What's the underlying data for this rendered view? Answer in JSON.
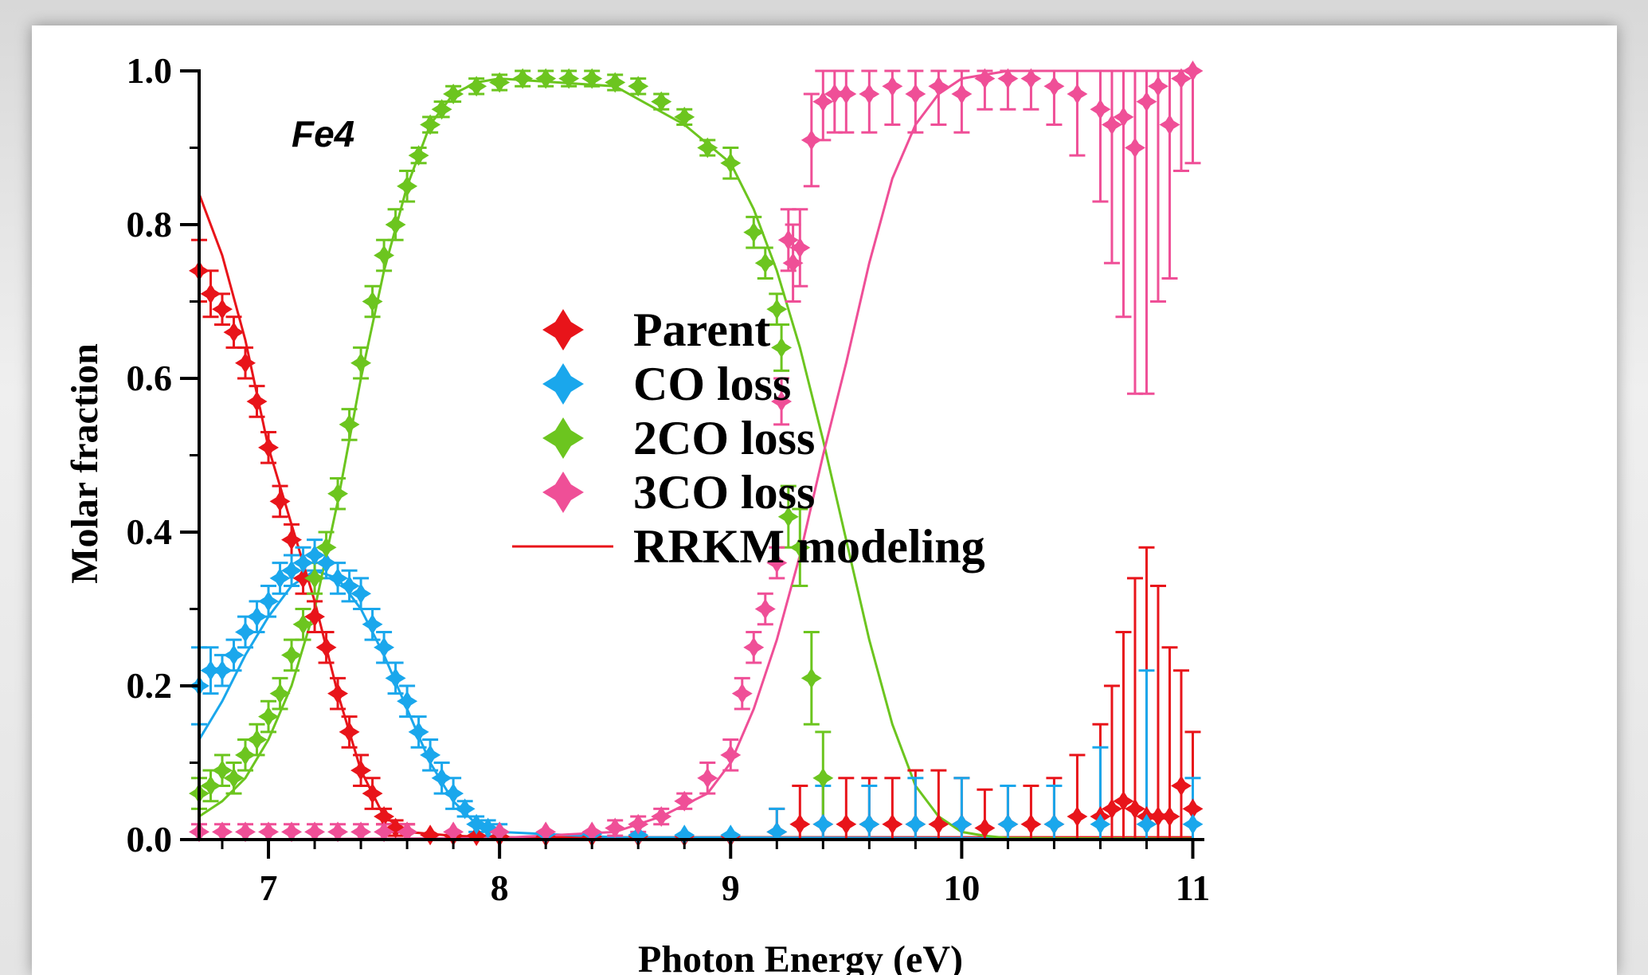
{
  "chart_data": {
    "type": "scatter",
    "title": "",
    "annotation": "Fe4",
    "xlabel": "Photon Energy (eV)",
    "ylabel": "Molar fraction",
    "xlim": [
      6.7,
      11.05
    ],
    "ylim": [
      0.0,
      1.0
    ],
    "x_ticks": [
      "7",
      "8",
      "9",
      "10",
      "11"
    ],
    "y_ticks": [
      "0.0",
      "0.2",
      "0.4",
      "0.6",
      "0.8",
      "1.0"
    ],
    "grid": false,
    "legend_position": "center",
    "colors": {
      "parent": "#e8141a",
      "co_loss": "#1aa7ec",
      "two_co_loss": "#6cc51f",
      "three_co_loss": "#ef4f97"
    },
    "series": [
      {
        "name": "Parent",
        "kind": "points",
        "color": "#e8141a",
        "x": [
          6.7,
          6.75,
          6.8,
          6.85,
          6.9,
          6.95,
          7.0,
          7.05,
          7.1,
          7.15,
          7.2,
          7.25,
          7.3,
          7.35,
          7.4,
          7.45,
          7.5,
          7.55,
          7.6,
          7.7,
          7.8,
          7.9,
          8.0,
          8.2,
          8.4,
          8.6,
          8.8,
          9.0,
          9.2,
          9.3,
          9.4,
          9.5,
          9.6,
          9.7,
          9.8,
          9.9,
          10.0,
          10.1,
          10.2,
          10.3,
          10.4,
          10.5,
          10.6,
          10.65,
          10.7,
          10.75,
          10.8,
          10.85,
          10.9,
          10.95,
          11.0
        ],
        "y": [
          0.74,
          0.71,
          0.69,
          0.66,
          0.62,
          0.57,
          0.51,
          0.44,
          0.39,
          0.34,
          0.29,
          0.25,
          0.19,
          0.14,
          0.09,
          0.06,
          0.03,
          0.015,
          0.01,
          0.006,
          0.005,
          0.005,
          0.004,
          0.004,
          0.004,
          0.004,
          0.004,
          0.004,
          0.01,
          0.02,
          0.02,
          0.02,
          0.02,
          0.02,
          0.02,
          0.02,
          0.02,
          0.015,
          0.02,
          0.02,
          0.02,
          0.03,
          0.03,
          0.04,
          0.05,
          0.04,
          0.03,
          0.03,
          0.03,
          0.07,
          0.04
        ],
        "err": [
          0.04,
          0.03,
          0.02,
          0.02,
          0.02,
          0.02,
          0.02,
          0.02,
          0.02,
          0.02,
          0.02,
          0.02,
          0.02,
          0.02,
          0.02,
          0.02,
          0.01,
          0.01,
          0.01,
          0.005,
          0.005,
          0.005,
          0.005,
          0.005,
          0.005,
          0.005,
          0.005,
          0.005,
          0.03,
          0.05,
          0.06,
          0.06,
          0.06,
          0.06,
          0.07,
          0.07,
          0.06,
          0.05,
          0.05,
          0.05,
          0.06,
          0.08,
          0.12,
          0.16,
          0.22,
          0.3,
          0.35,
          0.3,
          0.22,
          0.15,
          0.1
        ]
      },
      {
        "name": "CO loss",
        "kind": "points",
        "color": "#1aa7ec",
        "x": [
          6.7,
          6.75,
          6.8,
          6.85,
          6.9,
          6.95,
          7.0,
          7.05,
          7.1,
          7.15,
          7.2,
          7.25,
          7.3,
          7.35,
          7.4,
          7.45,
          7.5,
          7.55,
          7.6,
          7.65,
          7.7,
          7.75,
          7.8,
          7.85,
          7.9,
          7.95,
          8.0,
          8.2,
          8.4,
          8.6,
          8.8,
          9.0,
          9.2,
          9.4,
          9.6,
          9.8,
          10.0,
          10.2,
          10.4,
          10.6,
          10.8,
          11.0
        ],
        "y": [
          0.2,
          0.22,
          0.22,
          0.24,
          0.27,
          0.29,
          0.31,
          0.34,
          0.35,
          0.36,
          0.37,
          0.36,
          0.34,
          0.33,
          0.32,
          0.28,
          0.25,
          0.21,
          0.18,
          0.14,
          0.11,
          0.08,
          0.06,
          0.04,
          0.02,
          0.015,
          0.01,
          0.007,
          0.007,
          0.006,
          0.006,
          0.006,
          0.01,
          0.02,
          0.02,
          0.02,
          0.02,
          0.02,
          0.02,
          0.02,
          0.02,
          0.02
        ],
        "err": [
          0.05,
          0.03,
          0.02,
          0.02,
          0.02,
          0.02,
          0.02,
          0.02,
          0.02,
          0.02,
          0.02,
          0.02,
          0.02,
          0.02,
          0.02,
          0.02,
          0.02,
          0.02,
          0.02,
          0.02,
          0.02,
          0.02,
          0.02,
          0.01,
          0.01,
          0.01,
          0.01,
          0.005,
          0.005,
          0.005,
          0.005,
          0.005,
          0.03,
          0.05,
          0.05,
          0.06,
          0.06,
          0.05,
          0.05,
          0.1,
          0.2,
          0.06
        ]
      },
      {
        "name": "2CO loss",
        "kind": "points",
        "color": "#6cc51f",
        "x": [
          6.7,
          6.75,
          6.8,
          6.85,
          6.9,
          6.95,
          7.0,
          7.05,
          7.1,
          7.15,
          7.2,
          7.25,
          7.3,
          7.35,
          7.4,
          7.45,
          7.5,
          7.55,
          7.6,
          7.65,
          7.7,
          7.75,
          7.8,
          7.9,
          8.0,
          8.1,
          8.2,
          8.3,
          8.4,
          8.5,
          8.6,
          8.7,
          8.8,
          8.9,
          9.0,
          9.1,
          9.15,
          9.2,
          9.22,
          9.25,
          9.3,
          9.35,
          9.4
        ],
        "y": [
          0.06,
          0.07,
          0.09,
          0.08,
          0.11,
          0.13,
          0.16,
          0.19,
          0.24,
          0.28,
          0.34,
          0.38,
          0.45,
          0.54,
          0.62,
          0.7,
          0.76,
          0.8,
          0.85,
          0.89,
          0.93,
          0.95,
          0.97,
          0.98,
          0.985,
          0.99,
          0.99,
          0.99,
          0.99,
          0.985,
          0.98,
          0.96,
          0.94,
          0.9,
          0.88,
          0.79,
          0.75,
          0.69,
          0.64,
          0.42,
          0.38,
          0.21,
          0.08
        ],
        "err": [
          0.02,
          0.02,
          0.02,
          0.02,
          0.02,
          0.02,
          0.02,
          0.02,
          0.02,
          0.02,
          0.02,
          0.02,
          0.02,
          0.02,
          0.02,
          0.02,
          0.02,
          0.02,
          0.02,
          0.01,
          0.01,
          0.01,
          0.01,
          0.01,
          0.01,
          0.01,
          0.01,
          0.01,
          0.01,
          0.01,
          0.01,
          0.01,
          0.01,
          0.01,
          0.02,
          0.02,
          0.02,
          0.02,
          0.03,
          0.04,
          0.05,
          0.06,
          0.06
        ]
      },
      {
        "name": "3CO loss",
        "kind": "points",
        "color": "#ef4f97",
        "x": [
          6.7,
          6.8,
          6.9,
          7.0,
          7.1,
          7.2,
          7.3,
          7.4,
          7.5,
          7.6,
          7.8,
          8.0,
          8.2,
          8.4,
          8.5,
          8.6,
          8.7,
          8.8,
          8.9,
          9.0,
          9.05,
          9.1,
          9.15,
          9.2,
          9.22,
          9.25,
          9.27,
          9.3,
          9.35,
          9.4,
          9.45,
          9.5,
          9.6,
          9.7,
          9.8,
          9.9,
          10.0,
          10.1,
          10.2,
          10.3,
          10.4,
          10.5,
          10.6,
          10.65,
          10.7,
          10.75,
          10.8,
          10.85,
          10.9,
          10.95,
          11.0
        ],
        "y": [
          0.01,
          0.01,
          0.01,
          0.01,
          0.01,
          0.01,
          0.01,
          0.01,
          0.01,
          0.01,
          0.01,
          0.01,
          0.01,
          0.01,
          0.015,
          0.02,
          0.03,
          0.05,
          0.08,
          0.11,
          0.19,
          0.25,
          0.3,
          0.36,
          0.57,
          0.78,
          0.75,
          0.77,
          0.91,
          0.96,
          0.97,
          0.97,
          0.97,
          0.98,
          0.97,
          0.98,
          0.97,
          0.99,
          0.99,
          0.99,
          0.98,
          0.97,
          0.95,
          0.93,
          0.94,
          0.9,
          0.96,
          0.98,
          0.93,
          0.99,
          1.0
        ],
        "err": [
          0.01,
          0.01,
          0.01,
          0.01,
          0.01,
          0.01,
          0.01,
          0.01,
          0.01,
          0.01,
          0.005,
          0.005,
          0.005,
          0.005,
          0.01,
          0.01,
          0.01,
          0.01,
          0.02,
          0.02,
          0.02,
          0.02,
          0.02,
          0.02,
          0.03,
          0.04,
          0.05,
          0.05,
          0.06,
          0.05,
          0.05,
          0.05,
          0.05,
          0.05,
          0.05,
          0.05,
          0.05,
          0.04,
          0.04,
          0.04,
          0.05,
          0.08,
          0.12,
          0.18,
          0.26,
          0.32,
          0.38,
          0.28,
          0.2,
          0.12,
          0.12
        ]
      },
      {
        "name": "RRKM modeling",
        "kind": "lines",
        "model_parent": {
          "color": "#e8141a",
          "x": [
            6.7,
            6.8,
            6.9,
            7.0,
            7.1,
            7.2,
            7.3,
            7.4,
            7.5,
            7.6,
            7.8,
            8.0,
            9.0,
            10.0,
            11.0
          ],
          "y": [
            0.84,
            0.76,
            0.65,
            0.51,
            0.41,
            0.31,
            0.19,
            0.09,
            0.03,
            0.01,
            0.005,
            0.003,
            0.003,
            0.003,
            0.003
          ]
        },
        "model_co": {
          "color": "#1aa7ec",
          "x": [
            6.7,
            6.8,
            6.9,
            7.0,
            7.1,
            7.2,
            7.3,
            7.4,
            7.5,
            7.6,
            7.7,
            7.8,
            7.9,
            8.0,
            8.5,
            11.0
          ],
          "y": [
            0.13,
            0.18,
            0.24,
            0.29,
            0.33,
            0.35,
            0.34,
            0.3,
            0.24,
            0.17,
            0.1,
            0.05,
            0.02,
            0.01,
            0.003,
            0.001
          ]
        },
        "model_2co": {
          "color": "#6cc51f",
          "x": [
            6.7,
            6.8,
            6.9,
            7.0,
            7.1,
            7.2,
            7.3,
            7.4,
            7.5,
            7.6,
            7.7,
            7.8,
            7.9,
            8.0,
            8.5,
            8.8,
            9.0,
            9.1,
            9.2,
            9.3,
            9.4,
            9.5,
            9.6,
            9.7,
            9.8,
            9.9,
            10.0,
            10.1,
            10.2,
            11.0
          ],
          "y": [
            0.03,
            0.05,
            0.08,
            0.13,
            0.2,
            0.3,
            0.44,
            0.6,
            0.74,
            0.85,
            0.93,
            0.97,
            0.985,
            0.99,
            0.98,
            0.93,
            0.88,
            0.82,
            0.74,
            0.64,
            0.52,
            0.39,
            0.26,
            0.15,
            0.07,
            0.03,
            0.01,
            0.005,
            0.002,
            0.001
          ]
        },
        "model_3co": {
          "color": "#ef4f97",
          "x": [
            6.7,
            8.0,
            8.5,
            8.7,
            8.9,
            9.0,
            9.1,
            9.2,
            9.3,
            9.4,
            9.5,
            9.6,
            9.7,
            9.8,
            9.9,
            10.0,
            10.2,
            11.0
          ],
          "y": [
            0.0,
            0.002,
            0.01,
            0.03,
            0.06,
            0.1,
            0.17,
            0.26,
            0.37,
            0.5,
            0.62,
            0.75,
            0.86,
            0.93,
            0.97,
            0.99,
            1.0,
            1.0
          ]
        }
      }
    ]
  }
}
